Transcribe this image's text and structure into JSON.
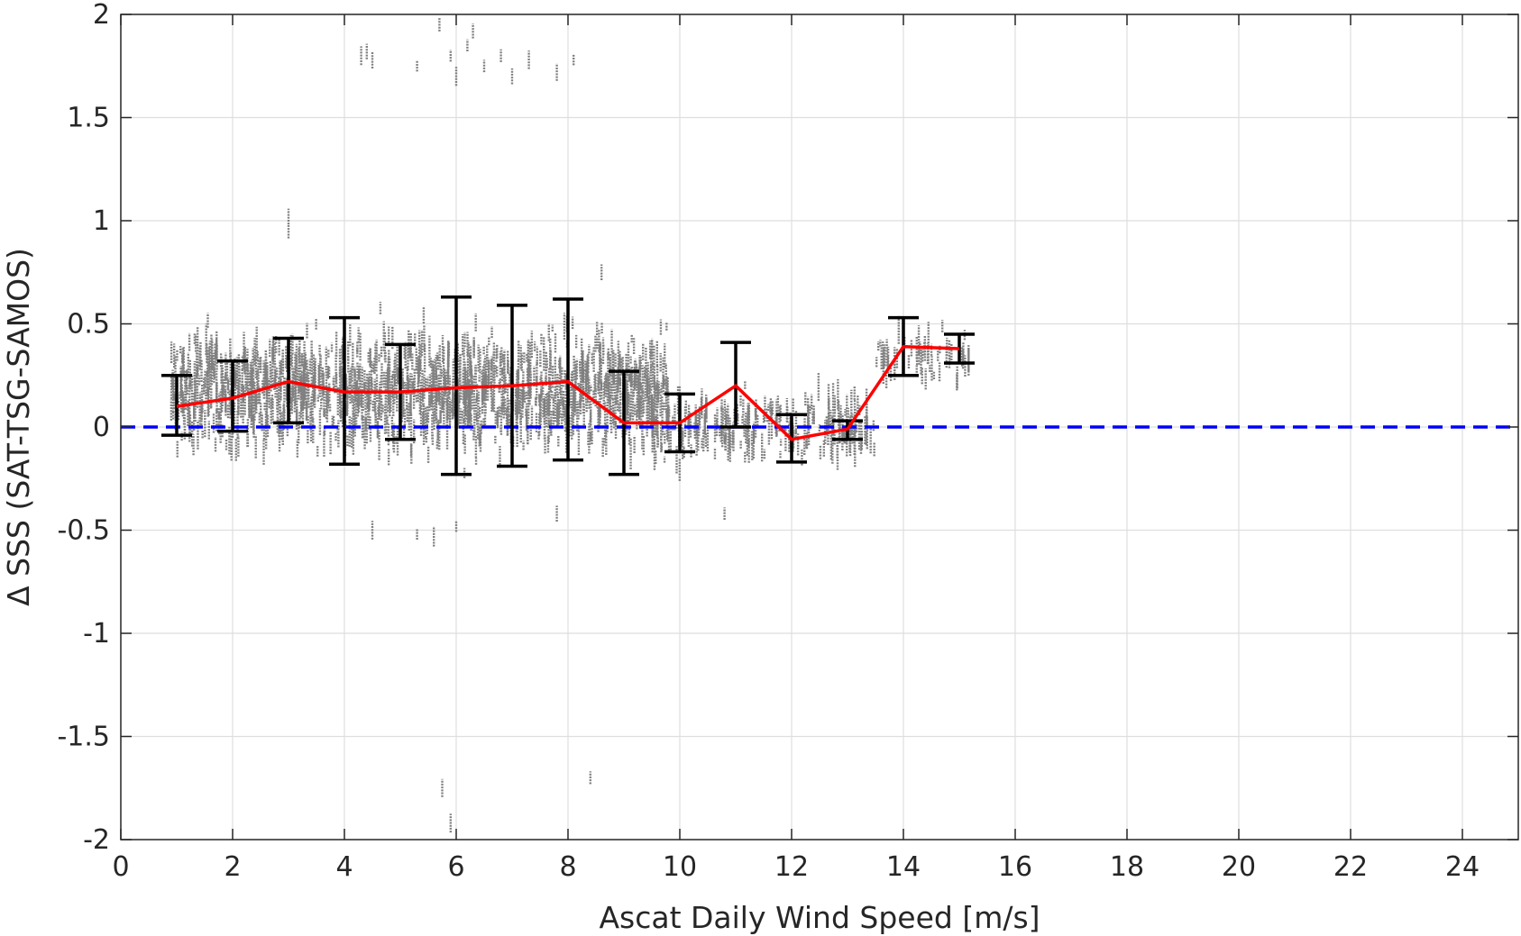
{
  "chart_data": {
    "type": "scatter",
    "xlabel": "Ascat Daily Wind Speed [m/s]",
    "ylabel": "Δ SSS (SAT-TSG-SAMOS)",
    "xlim": [
      0,
      25
    ],
    "ylim": [
      -2,
      2
    ],
    "x_ticks": [
      0,
      2,
      4,
      6,
      8,
      10,
      12,
      14,
      16,
      18,
      20,
      22,
      24
    ],
    "y_ticks": [
      -2,
      -1.5,
      -1,
      -0.5,
      0,
      0.5,
      1,
      1.5,
      2
    ],
    "y_tick_labels": [
      "-2",
      "-1.5",
      "-1",
      "-0.5",
      "0",
      "0.5",
      "1",
      "1.5",
      "2"
    ],
    "grid": true,
    "reference_line": {
      "y": 0,
      "style": "dashed",
      "color": "#0000ff"
    },
    "mean_line": {
      "color": "#ff0000",
      "x": [
        1,
        2,
        3,
        4,
        5,
        6,
        7,
        8,
        9,
        10,
        11,
        12,
        13,
        14,
        15
      ],
      "y": [
        0.1,
        0.14,
        0.22,
        0.17,
        0.17,
        0.19,
        0.2,
        0.22,
        0.02,
        0.02,
        0.2,
        -0.06,
        -0.01,
        0.39,
        0.38
      ]
    },
    "error_bars": {
      "color": "#000000",
      "x": [
        1,
        2,
        3,
        4,
        5,
        6,
        7,
        8,
        9,
        10,
        11,
        12,
        13,
        14,
        15
      ],
      "low": [
        -0.04,
        -0.02,
        0.02,
        -0.18,
        -0.06,
        -0.23,
        -0.19,
        -0.16,
        -0.23,
        -0.12,
        0.0,
        -0.17,
        -0.06,
        0.25,
        0.31
      ],
      "high": [
        0.25,
        0.32,
        0.43,
        0.53,
        0.4,
        0.63,
        0.59,
        0.62,
        0.27,
        0.16,
        0.41,
        0.06,
        0.03,
        0.53,
        0.45
      ]
    },
    "scatter": {
      "color": "#808080",
      "description_clusters": [
        {
          "x_range": [
            0.9,
            9.8
          ],
          "center_y": 0.18,
          "spread": 0.2
        },
        {
          "x_range": [
            9.5,
            13.5
          ],
          "center_y": 0.0,
          "spread": 0.12
        },
        {
          "x_range": [
            13.5,
            15.2
          ],
          "center_y": 0.35,
          "spread": 0.1
        }
      ],
      "outliers": [
        [
          4.4,
          1.82
        ],
        [
          4.5,
          1.78
        ],
        [
          4.3,
          1.8
        ],
        [
          5.7,
          1.95
        ],
        [
          5.9,
          1.8
        ],
        [
          6.0,
          1.7
        ],
        [
          6.2,
          1.85
        ],
        [
          6.3,
          1.92
        ],
        [
          6.5,
          1.75
        ],
        [
          6.8,
          1.8
        ],
        [
          7.0,
          1.7
        ],
        [
          7.3,
          1.78
        ],
        [
          7.8,
          1.72
        ],
        [
          8.1,
          1.78
        ],
        [
          5.3,
          1.75
        ],
        [
          3.0,
          1.02
        ],
        [
          3.0,
          0.95
        ],
        [
          5.75,
          -1.75
        ],
        [
          5.9,
          -1.92
        ],
        [
          8.4,
          -1.7
        ],
        [
          4.5,
          -0.5
        ],
        [
          5.3,
          -0.52
        ],
        [
          5.6,
          -0.53
        ],
        [
          6.0,
          -0.48
        ],
        [
          10.8,
          -0.42
        ],
        [
          7.8,
          -0.42
        ],
        [
          8.6,
          0.75
        ]
      ]
    }
  }
}
